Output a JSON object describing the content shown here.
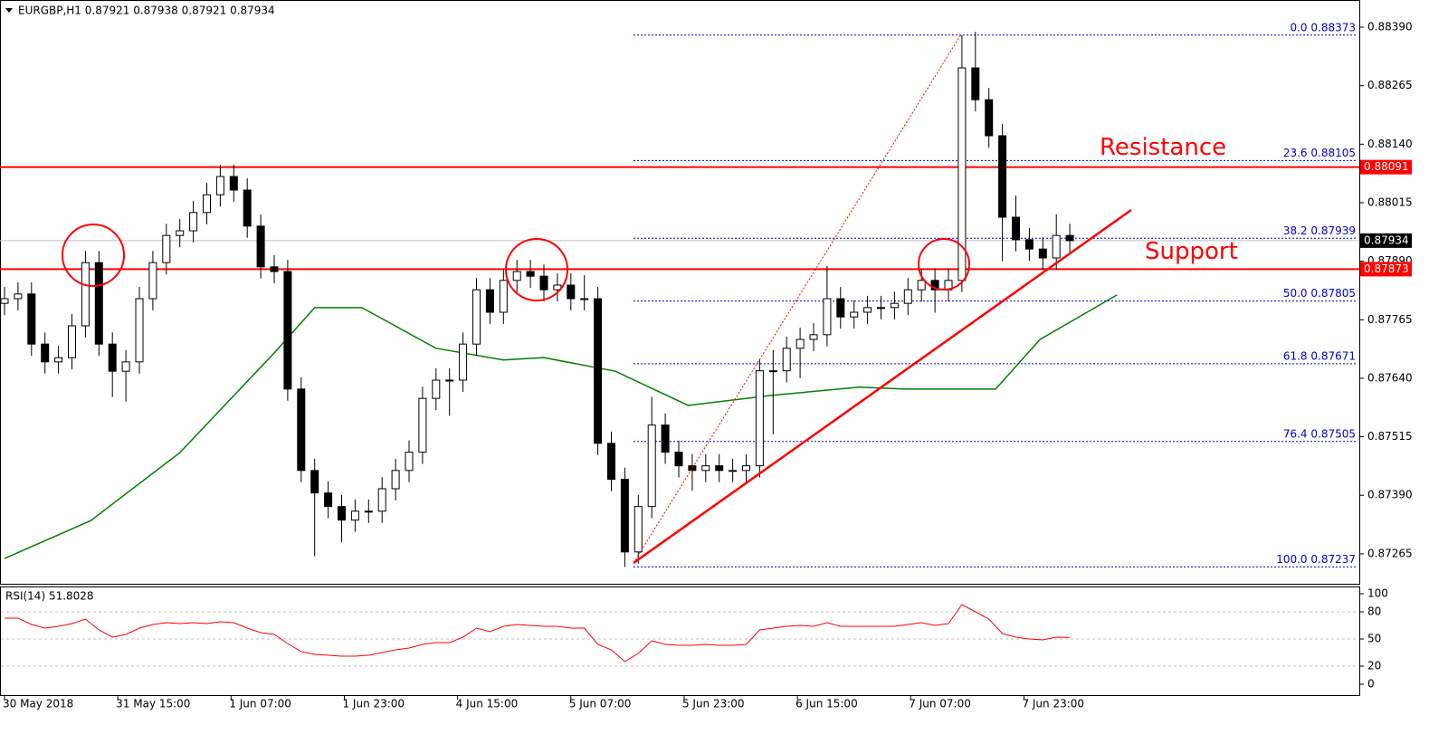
{
  "chart_data": {
    "type": "candlestick",
    "title": "EURGBP,H1  0.87921 0.87938 0.87921 0.87934",
    "ylim": [
      0.87201,
      0.88448
    ],
    "yticks": [
      {
        "value": 0.8839,
        "label": "0.88390"
      },
      {
        "value": 0.88265,
        "label": "0.88265"
      },
      {
        "value": 0.8814,
        "label": "0.88140"
      },
      {
        "value": 0.88015,
        "label": "0.88015"
      },
      {
        "value": 0.8789,
        "label": "0.87890"
      },
      {
        "value": 0.87765,
        "label": "0.87765"
      },
      {
        "value": 0.8764,
        "label": "0.87640"
      },
      {
        "value": 0.87515,
        "label": "0.87515"
      },
      {
        "value": 0.8739,
        "label": "0.87390"
      },
      {
        "value": 0.87265,
        "label": "0.87265"
      }
    ],
    "xticks": [
      {
        "value": 0,
        "label": "30 May 2018"
      },
      {
        "value": 8.4,
        "label": "31 May 15:00"
      },
      {
        "value": 16.8,
        "label": "1 Jun 07:00"
      },
      {
        "value": 25.2,
        "label": "1 Jun 23:00"
      },
      {
        "value": 33.6,
        "label": "4 Jun 15:00"
      },
      {
        "value": 42,
        "label": "5 Jun 07:00"
      },
      {
        "value": 50.4,
        "label": "5 Jun 23:00"
      },
      {
        "value": 58.8,
        "label": "6 Jun 15:00"
      },
      {
        "value": 67.2,
        "label": "7 Jun 07:00"
      },
      {
        "value": 75.6,
        "label": "7 Jun 23:00"
      }
    ],
    "candles": [
      [
        0.878,
        0.87835,
        0.87775,
        0.8781
      ],
      [
        0.8781,
        0.87845,
        0.87785,
        0.8782
      ],
      [
        0.8782,
        0.87845,
        0.87688,
        0.87713
      ],
      [
        0.87713,
        0.87738,
        0.8765,
        0.87675
      ],
      [
        0.87675,
        0.87709,
        0.8765,
        0.87684
      ],
      [
        0.87684,
        0.87777,
        0.87659,
        0.87752
      ],
      [
        0.87752,
        0.87912,
        0.87727,
        0.87887
      ],
      [
        0.87887,
        0.87912,
        0.87688,
        0.87713
      ],
      [
        0.87713,
        0.87738,
        0.876,
        0.87655
      ],
      [
        0.87655,
        0.877,
        0.8759,
        0.87675
      ],
      [
        0.87675,
        0.87835,
        0.8765,
        0.8781
      ],
      [
        0.8781,
        0.87912,
        0.87785,
        0.87887
      ],
      [
        0.87887,
        0.8797,
        0.87862,
        0.87945
      ],
      [
        0.87945,
        0.8798,
        0.8792,
        0.87955
      ],
      [
        0.87955,
        0.88019,
        0.8793,
        0.87994
      ],
      [
        0.87994,
        0.88057,
        0.87969,
        0.88032
      ],
      [
        0.88032,
        0.88096,
        0.88007,
        0.88071
      ],
      [
        0.88071,
        0.88096,
        0.88017,
        0.88042
      ],
      [
        0.88042,
        0.88067,
        0.8794,
        0.87965
      ],
      [
        0.87965,
        0.8799,
        0.87853,
        0.87878
      ],
      [
        0.87878,
        0.87903,
        0.87843,
        0.87868
      ],
      [
        0.87868,
        0.87893,
        0.87592,
        0.87617
      ],
      [
        0.87617,
        0.87642,
        0.87418,
        0.87443
      ],
      [
        0.87443,
        0.87468,
        0.8726,
        0.87395
      ],
      [
        0.87395,
        0.8742,
        0.87341,
        0.87366
      ],
      [
        0.87366,
        0.87391,
        0.8729,
        0.87337
      ],
      [
        0.87337,
        0.87381,
        0.87312,
        0.87356
      ],
      [
        0.87356,
        0.87381,
        0.87331,
        0.87356
      ],
      [
        0.87356,
        0.87429,
        0.87331,
        0.87404
      ],
      [
        0.87404,
        0.87468,
        0.87379,
        0.87443
      ],
      [
        0.87443,
        0.87507,
        0.87418,
        0.87482
      ],
      [
        0.87482,
        0.87622,
        0.87457,
        0.87597
      ],
      [
        0.87597,
        0.87661,
        0.87572,
        0.87636
      ],
      [
        0.87636,
        0.87661,
        0.8756,
        0.87636
      ],
      [
        0.87636,
        0.87738,
        0.87611,
        0.87713
      ],
      [
        0.87713,
        0.87854,
        0.87688,
        0.87829
      ],
      [
        0.87829,
        0.87854,
        0.87756,
        0.87781
      ],
      [
        0.87781,
        0.87874,
        0.87756,
        0.87849
      ],
      [
        0.87849,
        0.87893,
        0.87824,
        0.87868
      ],
      [
        0.87868,
        0.87893,
        0.87833,
        0.87858
      ],
      [
        0.87858,
        0.87883,
        0.87804,
        0.87829
      ],
      [
        0.87829,
        0.87864,
        0.87804,
        0.87839
      ],
      [
        0.87839,
        0.87864,
        0.87785,
        0.8781
      ],
      [
        0.8781,
        0.8786,
        0.87785,
        0.8781
      ],
      [
        0.8781,
        0.87835,
        0.87476,
        0.87501
      ],
      [
        0.87501,
        0.87526,
        0.87399,
        0.87424
      ],
      [
        0.87424,
        0.87449,
        0.87237,
        0.87269
      ],
      [
        0.87269,
        0.87391,
        0.87244,
        0.87366
      ],
      [
        0.87366,
        0.876,
        0.87341,
        0.8754
      ],
      [
        0.8754,
        0.87565,
        0.87457,
        0.87482
      ],
      [
        0.87482,
        0.87507,
        0.87428,
        0.87453
      ],
      [
        0.87453,
        0.87478,
        0.874,
        0.87443
      ],
      [
        0.87443,
        0.87478,
        0.87418,
        0.87453
      ],
      [
        0.87453,
        0.87478,
        0.87418,
        0.87443
      ],
      [
        0.87443,
        0.87468,
        0.87418,
        0.87443
      ],
      [
        0.87443,
        0.87478,
        0.87418,
        0.87453
      ],
      [
        0.87453,
        0.87681,
        0.87428,
        0.87656
      ],
      [
        0.87656,
        0.877,
        0.8752,
        0.87656
      ],
      [
        0.87656,
        0.87729,
        0.87631,
        0.87704
      ],
      [
        0.87704,
        0.87748,
        0.8764,
        0.87723
      ],
      [
        0.87723,
        0.87758,
        0.87698,
        0.87733
      ],
      [
        0.87733,
        0.8788,
        0.87708,
        0.8781
      ],
      [
        0.8781,
        0.87835,
        0.87746,
        0.87771
      ],
      [
        0.87771,
        0.87806,
        0.87746,
        0.87781
      ],
      [
        0.87781,
        0.87816,
        0.87756,
        0.87791
      ],
      [
        0.87791,
        0.87816,
        0.87766,
        0.87791
      ],
      [
        0.87791,
        0.87825,
        0.87766,
        0.878
      ],
      [
        0.878,
        0.87854,
        0.87775,
        0.87829
      ],
      [
        0.87829,
        0.87874,
        0.87804,
        0.87849
      ],
      [
        0.87849,
        0.87874,
        0.8778,
        0.87829
      ],
      [
        0.87829,
        0.87874,
        0.87804,
        0.87849
      ],
      [
        0.87849,
        0.88373,
        0.87824,
        0.88303
      ],
      [
        0.88303,
        0.8838,
        0.8821,
        0.88235
      ],
      [
        0.88235,
        0.8826,
        0.88133,
        0.88158
      ],
      [
        0.88158,
        0.88183,
        0.8789,
        0.87984
      ],
      [
        0.87984,
        0.8803,
        0.87911,
        0.87936
      ],
      [
        0.87936,
        0.87961,
        0.87891,
        0.87916
      ],
      [
        0.87916,
        0.87941,
        0.87872,
        0.87897
      ],
      [
        0.87897,
        0.8799,
        0.87872,
        0.87945
      ],
      [
        0.87945,
        0.8797,
        0.87909,
        0.87934
      ]
    ],
    "moving_average": {
      "color": "#008000",
      "x": [
        0,
        6.4,
        13,
        20,
        23,
        26.5,
        32,
        37,
        40,
        45.3,
        50.7,
        56.7,
        63.4,
        66.8,
        73.5,
        76.8,
        82.5
      ],
      "values": [
        0.87255,
        0.87336,
        0.87481,
        0.87694,
        0.87791,
        0.87791,
        0.87704,
        0.87679,
        0.87684,
        0.87655,
        0.87582,
        0.87603,
        0.87621,
        0.87617,
        0.87617,
        0.87723,
        0.87818
      ]
    },
    "fibonacci": {
      "color": "#0000cc",
      "levels": [
        {
          "value": 0.88373,
          "label": "0.0 0.88373"
        },
        {
          "value": 0.88105,
          "label": "23.6 0.88105"
        },
        {
          "value": 0.87939,
          "label": "38.2 0.87939"
        },
        {
          "value": 0.87805,
          "label": "50.0 0.87805"
        },
        {
          "value": 0.87671,
          "label": "61.8 0.87671"
        },
        {
          "value": 0.87505,
          "label": "76.4 0.87505"
        },
        {
          "value": 0.87237,
          "label": "100.0 0.87237"
        }
      ]
    },
    "resistance": {
      "label": "Resistance",
      "value": 0.88091,
      "color": "#ff0000"
    },
    "support": {
      "label": "Support",
      "value": 0.87873,
      "color": "#ff0000"
    },
    "last_price": 0.87934,
    "rsi": {
      "title": "RSI(14) 51.8028",
      "color": "#ff0000",
      "ylim": [
        -12,
        108
      ],
      "yticks": [
        100,
        80,
        50,
        20,
        0
      ],
      "values": [
        73,
        73,
        66,
        62,
        64,
        67,
        72,
        60,
        52,
        55,
        62,
        66,
        68,
        67,
        68,
        67,
        69,
        68,
        62,
        57,
        55,
        45,
        36,
        33,
        32,
        31,
        31,
        32,
        35,
        38,
        40,
        44,
        46,
        46,
        52,
        62,
        58,
        64,
        66,
        65,
        64,
        64,
        62,
        62,
        44,
        38,
        25,
        34,
        48,
        44,
        43,
        43,
        44,
        43,
        43,
        44,
        60,
        62,
        64,
        65,
        64,
        68,
        64,
        64,
        64,
        64,
        64,
        66,
        68,
        65,
        67,
        88,
        80,
        72,
        56,
        52,
        50,
        49,
        52,
        51.8028
      ]
    }
  }
}
